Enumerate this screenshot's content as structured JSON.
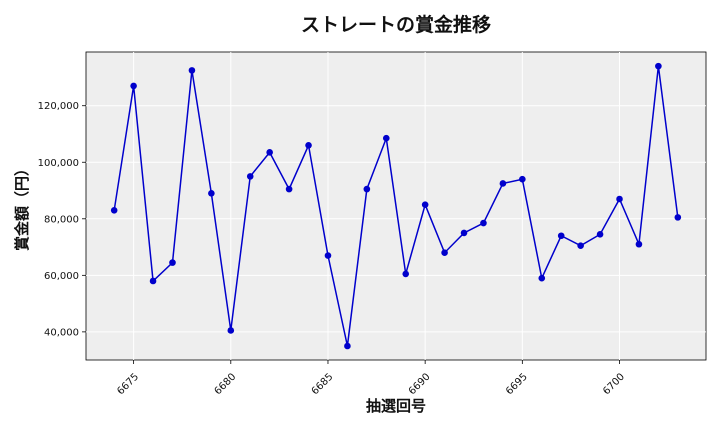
{
  "chart_data": {
    "type": "line",
    "title": "ストレートの賞金推移",
    "xlabel": "抽選回号",
    "ylabel": "賞金額（円）",
    "x": [
      6674,
      6675,
      6676,
      6677,
      6678,
      6679,
      6680,
      6681,
      6682,
      6683,
      6684,
      6685,
      6686,
      6687,
      6688,
      6689,
      6690,
      6691,
      6692,
      6693,
      6694,
      6695,
      6696,
      6697,
      6698,
      6699,
      6700,
      6701,
      6702,
      6703
    ],
    "series": [
      {
        "values": [
          83000,
          127000,
          58000,
          64500,
          132500,
          89000,
          40500,
          95000,
          103500,
          90500,
          106000,
          67000,
          35000,
          90500,
          108500,
          60500,
          85000,
          68000,
          75000,
          78500,
          92500,
          94000,
          59000,
          74000,
          70500,
          74500,
          87000,
          71000,
          134000,
          80500
        ],
        "color": "#0000cc"
      }
    ],
    "xticks": [
      6675,
      6680,
      6685,
      6690,
      6695,
      6700
    ],
    "xtick_labels": [
      "6675",
      "6680",
      "6685",
      "6690",
      "6695",
      "6700"
    ],
    "yticks": [
      40000,
      60000,
      80000,
      100000,
      120000
    ],
    "ytick_labels": [
      "40,000",
      "60,000",
      "80,000",
      "100,000",
      "120,000"
    ],
    "xlim": [
      6672.55,
      6704.45
    ],
    "ylim": [
      30050,
      139000
    ],
    "grid": true,
    "legend": "none",
    "plot_background": "#eeeeee"
  }
}
